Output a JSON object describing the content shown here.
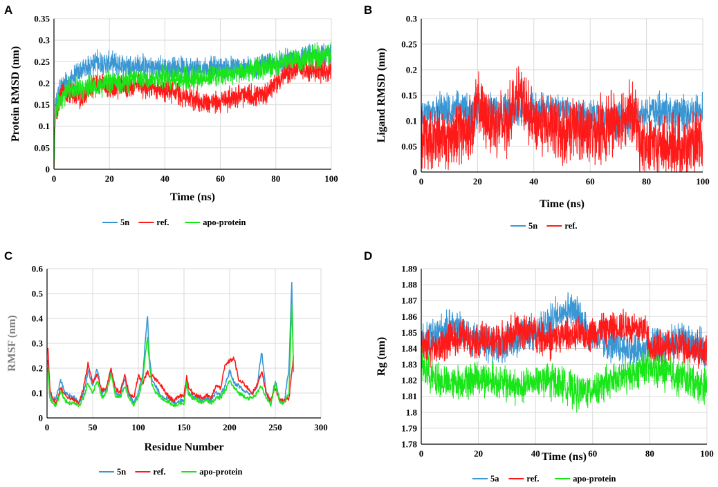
{
  "figure": {
    "panel_letters": [
      "A",
      "B",
      "C",
      "D"
    ]
  },
  "colors": {
    "5n": "#3a97d4",
    "ref": "#ff1a1a",
    "apo": "#19e619",
    "ylabel_gray": "#7f7f7f"
  },
  "chart_data": [
    {
      "id": "A",
      "type": "line",
      "noise": "high",
      "xlabel": "Time (ns)",
      "ylabel": "Protein RMSD (nm)",
      "ylabel_color": "#000000",
      "xlim": [
        0,
        100
      ],
      "ylim": [
        0,
        0.35
      ],
      "xticks": [
        "0",
        "20",
        "40",
        "60",
        "80",
        "100"
      ],
      "yticks": [
        "0",
        "0.05",
        "0.1",
        "0.15",
        "0.2",
        "0.25",
        "0.3",
        "0.35"
      ],
      "series": [
        {
          "name": "5n",
          "color": "#3a97d4",
          "jitter": 0.022,
          "x": [
            0,
            0.5,
            2,
            5,
            10,
            15,
            20,
            30,
            40,
            50,
            60,
            70,
            80,
            90,
            100
          ],
          "y": [
            0.0,
            0.14,
            0.19,
            0.2,
            0.23,
            0.25,
            0.245,
            0.24,
            0.235,
            0.235,
            0.235,
            0.235,
            0.245,
            0.26,
            0.265
          ]
        },
        {
          "name": "ref.",
          "color": "#ff1a1a",
          "jitter": 0.022,
          "x": [
            0,
            0.5,
            2,
            5,
            10,
            15,
            20,
            30,
            40,
            50,
            55,
            60,
            65,
            70,
            75,
            80,
            85,
            90,
            100
          ],
          "y": [
            0.0,
            0.13,
            0.17,
            0.18,
            0.165,
            0.2,
            0.19,
            0.195,
            0.185,
            0.165,
            0.155,
            0.155,
            0.17,
            0.17,
            0.17,
            0.2,
            0.23,
            0.235,
            0.225
          ]
        },
        {
          "name": "apo-protein",
          "color": "#19e619",
          "jitter": 0.022,
          "x": [
            0,
            0.5,
            2,
            5,
            10,
            20,
            30,
            40,
            50,
            60,
            70,
            75,
            80,
            90,
            100
          ],
          "y": [
            0.0,
            0.13,
            0.16,
            0.18,
            0.19,
            0.2,
            0.21,
            0.215,
            0.21,
            0.22,
            0.225,
            0.235,
            0.245,
            0.255,
            0.27
          ]
        }
      ],
      "legend": [
        "5n",
        "ref.",
        "apo-protein"
      ]
    },
    {
      "id": "B",
      "type": "line",
      "noise": "high",
      "xlabel": "Time (ns)",
      "ylabel": "Ligand RMSD (nm)",
      "ylabel_color": "#000000",
      "xlim": [
        0,
        100
      ],
      "ylim": [
        0,
        0.3
      ],
      "xticks": [
        "0",
        "20",
        "40",
        "60",
        "80",
        "100"
      ],
      "yticks": [
        "0",
        "0.05",
        "0.1",
        "0.15",
        "0.2",
        "0.25",
        "0.3"
      ],
      "series": [
        {
          "name": "5n",
          "color": "#3a97d4",
          "jitter": 0.028,
          "x": [
            0,
            5,
            10,
            20,
            30,
            40,
            50,
            60,
            70,
            78,
            80,
            90,
            100
          ],
          "y": [
            0.11,
            0.12,
            0.12,
            0.12,
            0.12,
            0.125,
            0.12,
            0.11,
            0.1,
            0.11,
            0.12,
            0.115,
            0.12
          ]
        },
        {
          "name": "ref.",
          "color": "#ff1a1a",
          "jitter": 0.05,
          "x": [
            0,
            10,
            18,
            20,
            22,
            25,
            30,
            33,
            35,
            38,
            40,
            45,
            50,
            55,
            60,
            65,
            70,
            73,
            75,
            77,
            78,
            80,
            90,
            100
          ],
          "y": [
            0.06,
            0.07,
            0.09,
            0.13,
            0.11,
            0.1,
            0.09,
            0.14,
            0.15,
            0.11,
            0.1,
            0.09,
            0.08,
            0.085,
            0.08,
            0.085,
            0.1,
            0.12,
            0.11,
            0.09,
            0.05,
            0.05,
            0.05,
            0.05
          ]
        }
      ],
      "legend": [
        "5n",
        "ref."
      ]
    },
    {
      "id": "C",
      "type": "line",
      "noise": "low",
      "xlabel": "Residue Number",
      "ylabel": "RMSF (nm)",
      "ylabel_color": "#7f7f7f",
      "xlim": [
        0,
        300
      ],
      "ylim": [
        0,
        0.6
      ],
      "xticks": [
        "0",
        "50",
        "100",
        "150",
        "200",
        "250",
        "300"
      ],
      "yticks": [
        "0",
        "0.1",
        "0.2",
        "0.3",
        "0.4",
        "0.5",
        "0.6"
      ],
      "series": [
        {
          "name": "5n",
          "color": "#3a97d4",
          "jitter": 0.008,
          "x": [
            1,
            3,
            6,
            10,
            15,
            20,
            25,
            30,
            35,
            40,
            45,
            50,
            55,
            60,
            65,
            70,
            75,
            80,
            85,
            90,
            95,
            100,
            105,
            110,
            112,
            115,
            120,
            125,
            130,
            135,
            140,
            145,
            150,
            153,
            155,
            160,
            165,
            170,
            175,
            180,
            185,
            190,
            195,
            200,
            205,
            210,
            215,
            220,
            225,
            230,
            235,
            240,
            245,
            250,
            255,
            260,
            265,
            268,
            270
          ],
          "y": [
            0.23,
            0.1,
            0.07,
            0.08,
            0.15,
            0.1,
            0.09,
            0.08,
            0.06,
            0.1,
            0.19,
            0.13,
            0.2,
            0.1,
            0.12,
            0.19,
            0.1,
            0.09,
            0.16,
            0.09,
            0.06,
            0.1,
            0.18,
            0.42,
            0.25,
            0.15,
            0.12,
            0.09,
            0.08,
            0.07,
            0.06,
            0.07,
            0.07,
            0.16,
            0.1,
            0.09,
            0.08,
            0.07,
            0.08,
            0.07,
            0.1,
            0.09,
            0.13,
            0.19,
            0.14,
            0.13,
            0.11,
            0.1,
            0.1,
            0.12,
            0.27,
            0.1,
            0.06,
            0.15,
            0.07,
            0.07,
            0.2,
            0.55,
            0.18
          ]
        },
        {
          "name": "ref.",
          "color": "#ff1a1a",
          "jitter": 0.008,
          "x": [
            1,
            3,
            6,
            10,
            15,
            20,
            25,
            30,
            35,
            40,
            45,
            50,
            55,
            60,
            65,
            70,
            75,
            80,
            85,
            90,
            95,
            100,
            105,
            110,
            112,
            115,
            120,
            125,
            130,
            135,
            140,
            145,
            150,
            153,
            155,
            160,
            165,
            170,
            175,
            180,
            185,
            190,
            195,
            200,
            205,
            210,
            215,
            220,
            225,
            230,
            235,
            240,
            245,
            250,
            255,
            260,
            265,
            268,
            270
          ],
          "y": [
            0.28,
            0.12,
            0.08,
            0.06,
            0.12,
            0.09,
            0.08,
            0.07,
            0.06,
            0.12,
            0.22,
            0.14,
            0.18,
            0.11,
            0.12,
            0.2,
            0.12,
            0.1,
            0.17,
            0.1,
            0.08,
            0.17,
            0.14,
            0.19,
            0.16,
            0.17,
            0.15,
            0.13,
            0.1,
            0.08,
            0.07,
            0.09,
            0.09,
            0.17,
            0.12,
            0.1,
            0.09,
            0.08,
            0.09,
            0.08,
            0.13,
            0.12,
            0.21,
            0.23,
            0.24,
            0.15,
            0.14,
            0.12,
            0.1,
            0.13,
            0.19,
            0.1,
            0.07,
            0.12,
            0.07,
            0.07,
            0.08,
            0.18,
            0.25
          ]
        },
        {
          "name": "apo-protein",
          "color": "#19e619",
          "jitter": 0.008,
          "x": [
            1,
            3,
            6,
            10,
            15,
            20,
            25,
            30,
            35,
            40,
            45,
            50,
            55,
            60,
            65,
            70,
            75,
            80,
            85,
            90,
            95,
            100,
            105,
            110,
            112,
            115,
            120,
            125,
            130,
            135,
            140,
            145,
            150,
            153,
            155,
            160,
            165,
            170,
            175,
            180,
            185,
            190,
            195,
            200,
            205,
            210,
            215,
            220,
            225,
            230,
            235,
            240,
            245,
            250,
            255,
            260,
            265,
            268,
            270
          ],
          "y": [
            0.2,
            0.08,
            0.06,
            0.05,
            0.11,
            0.07,
            0.06,
            0.06,
            0.05,
            0.08,
            0.14,
            0.1,
            0.15,
            0.08,
            0.1,
            0.18,
            0.09,
            0.08,
            0.13,
            0.08,
            0.05,
            0.08,
            0.16,
            0.33,
            0.22,
            0.13,
            0.1,
            0.08,
            0.07,
            0.06,
            0.05,
            0.06,
            0.06,
            0.14,
            0.09,
            0.08,
            0.07,
            0.06,
            0.07,
            0.06,
            0.08,
            0.08,
            0.11,
            0.15,
            0.12,
            0.1,
            0.09,
            0.08,
            0.08,
            0.1,
            0.13,
            0.08,
            0.05,
            0.14,
            0.06,
            0.06,
            0.1,
            0.46,
            0.2
          ]
        }
      ],
      "legend": [
        "5n",
        "ref.",
        "apo-protein"
      ]
    },
    {
      "id": "D",
      "type": "line",
      "noise": "high",
      "xlabel": "Time (ns)",
      "ylabel": "Rg (nm)",
      "ylabel_color": "#000000",
      "xlim": [
        0,
        100
      ],
      "ylim": [
        1.78,
        1.89
      ],
      "xticks": [
        "0",
        "20",
        "40",
        "60",
        "80",
        "100"
      ],
      "yticks": [
        "1.78",
        "1.79",
        "1.8",
        "1.81",
        "1.82",
        "1.83",
        "1.84",
        "1.85",
        "1.86",
        "1.87",
        "1.88",
        "1.89"
      ],
      "series": [
        {
          "name": "5a",
          "color": "#3a97d4",
          "jitter": 0.009,
          "x": [
            0,
            5,
            10,
            15,
            20,
            25,
            30,
            35,
            40,
            45,
            50,
            52,
            55,
            60,
            65,
            70,
            75,
            80,
            85,
            90,
            95,
            100
          ],
          "y": [
            1.845,
            1.848,
            1.855,
            1.85,
            1.845,
            1.842,
            1.843,
            1.848,
            1.85,
            1.856,
            1.865,
            1.866,
            1.86,
            1.848,
            1.843,
            1.84,
            1.838,
            1.84,
            1.842,
            1.845,
            1.843,
            1.84
          ]
        },
        {
          "name": "ref.",
          "color": "#ff1a1a",
          "jitter": 0.009,
          "x": [
            0,
            5,
            10,
            15,
            20,
            25,
            30,
            35,
            40,
            45,
            50,
            55,
            60,
            65,
            70,
            75,
            79,
            80,
            85,
            90,
            95,
            100
          ],
          "y": [
            1.842,
            1.84,
            1.845,
            1.847,
            1.845,
            1.845,
            1.848,
            1.852,
            1.85,
            1.845,
            1.848,
            1.848,
            1.85,
            1.852,
            1.855,
            1.852,
            1.853,
            1.84,
            1.84,
            1.842,
            1.84,
            1.838
          ]
        },
        {
          "name": "apo-protein",
          "color": "#19e619",
          "jitter": 0.009,
          "x": [
            0,
            5,
            10,
            15,
            20,
            25,
            30,
            35,
            40,
            45,
            50,
            55,
            60,
            65,
            70,
            75,
            80,
            85,
            90,
            95,
            100
          ],
          "y": [
            1.83,
            1.82,
            1.818,
            1.82,
            1.822,
            1.82,
            1.818,
            1.815,
            1.82,
            1.82,
            1.818,
            1.812,
            1.815,
            1.818,
            1.822,
            1.825,
            1.828,
            1.825,
            1.822,
            1.82,
            1.815
          ]
        }
      ],
      "legend": [
        "5a",
        "ref.",
        "apo-protein"
      ]
    }
  ]
}
